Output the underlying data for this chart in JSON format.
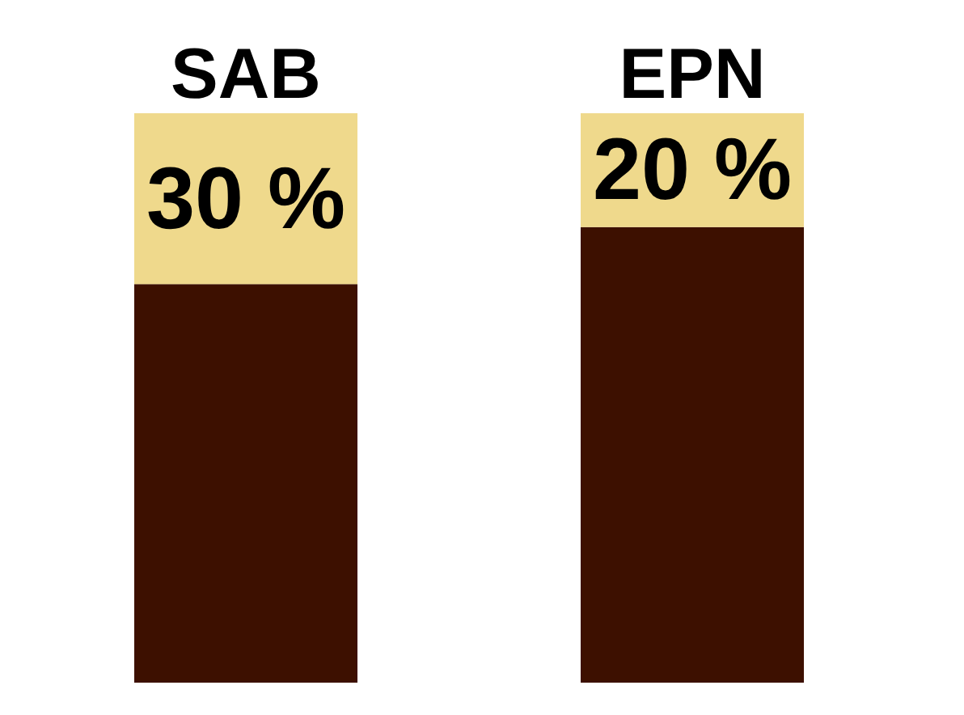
{
  "chart_data": {
    "type": "bar",
    "stacked": true,
    "categories": [
      "SAB",
      "EPN"
    ],
    "series": [
      {
        "color": "#3d1000",
        "values": [
          70,
          80
        ]
      },
      {
        "color": "#efd98c",
        "values": [
          30,
          20
        ],
        "value_labels": [
          "30 %",
          "20 %"
        ]
      }
    ]
  }
}
